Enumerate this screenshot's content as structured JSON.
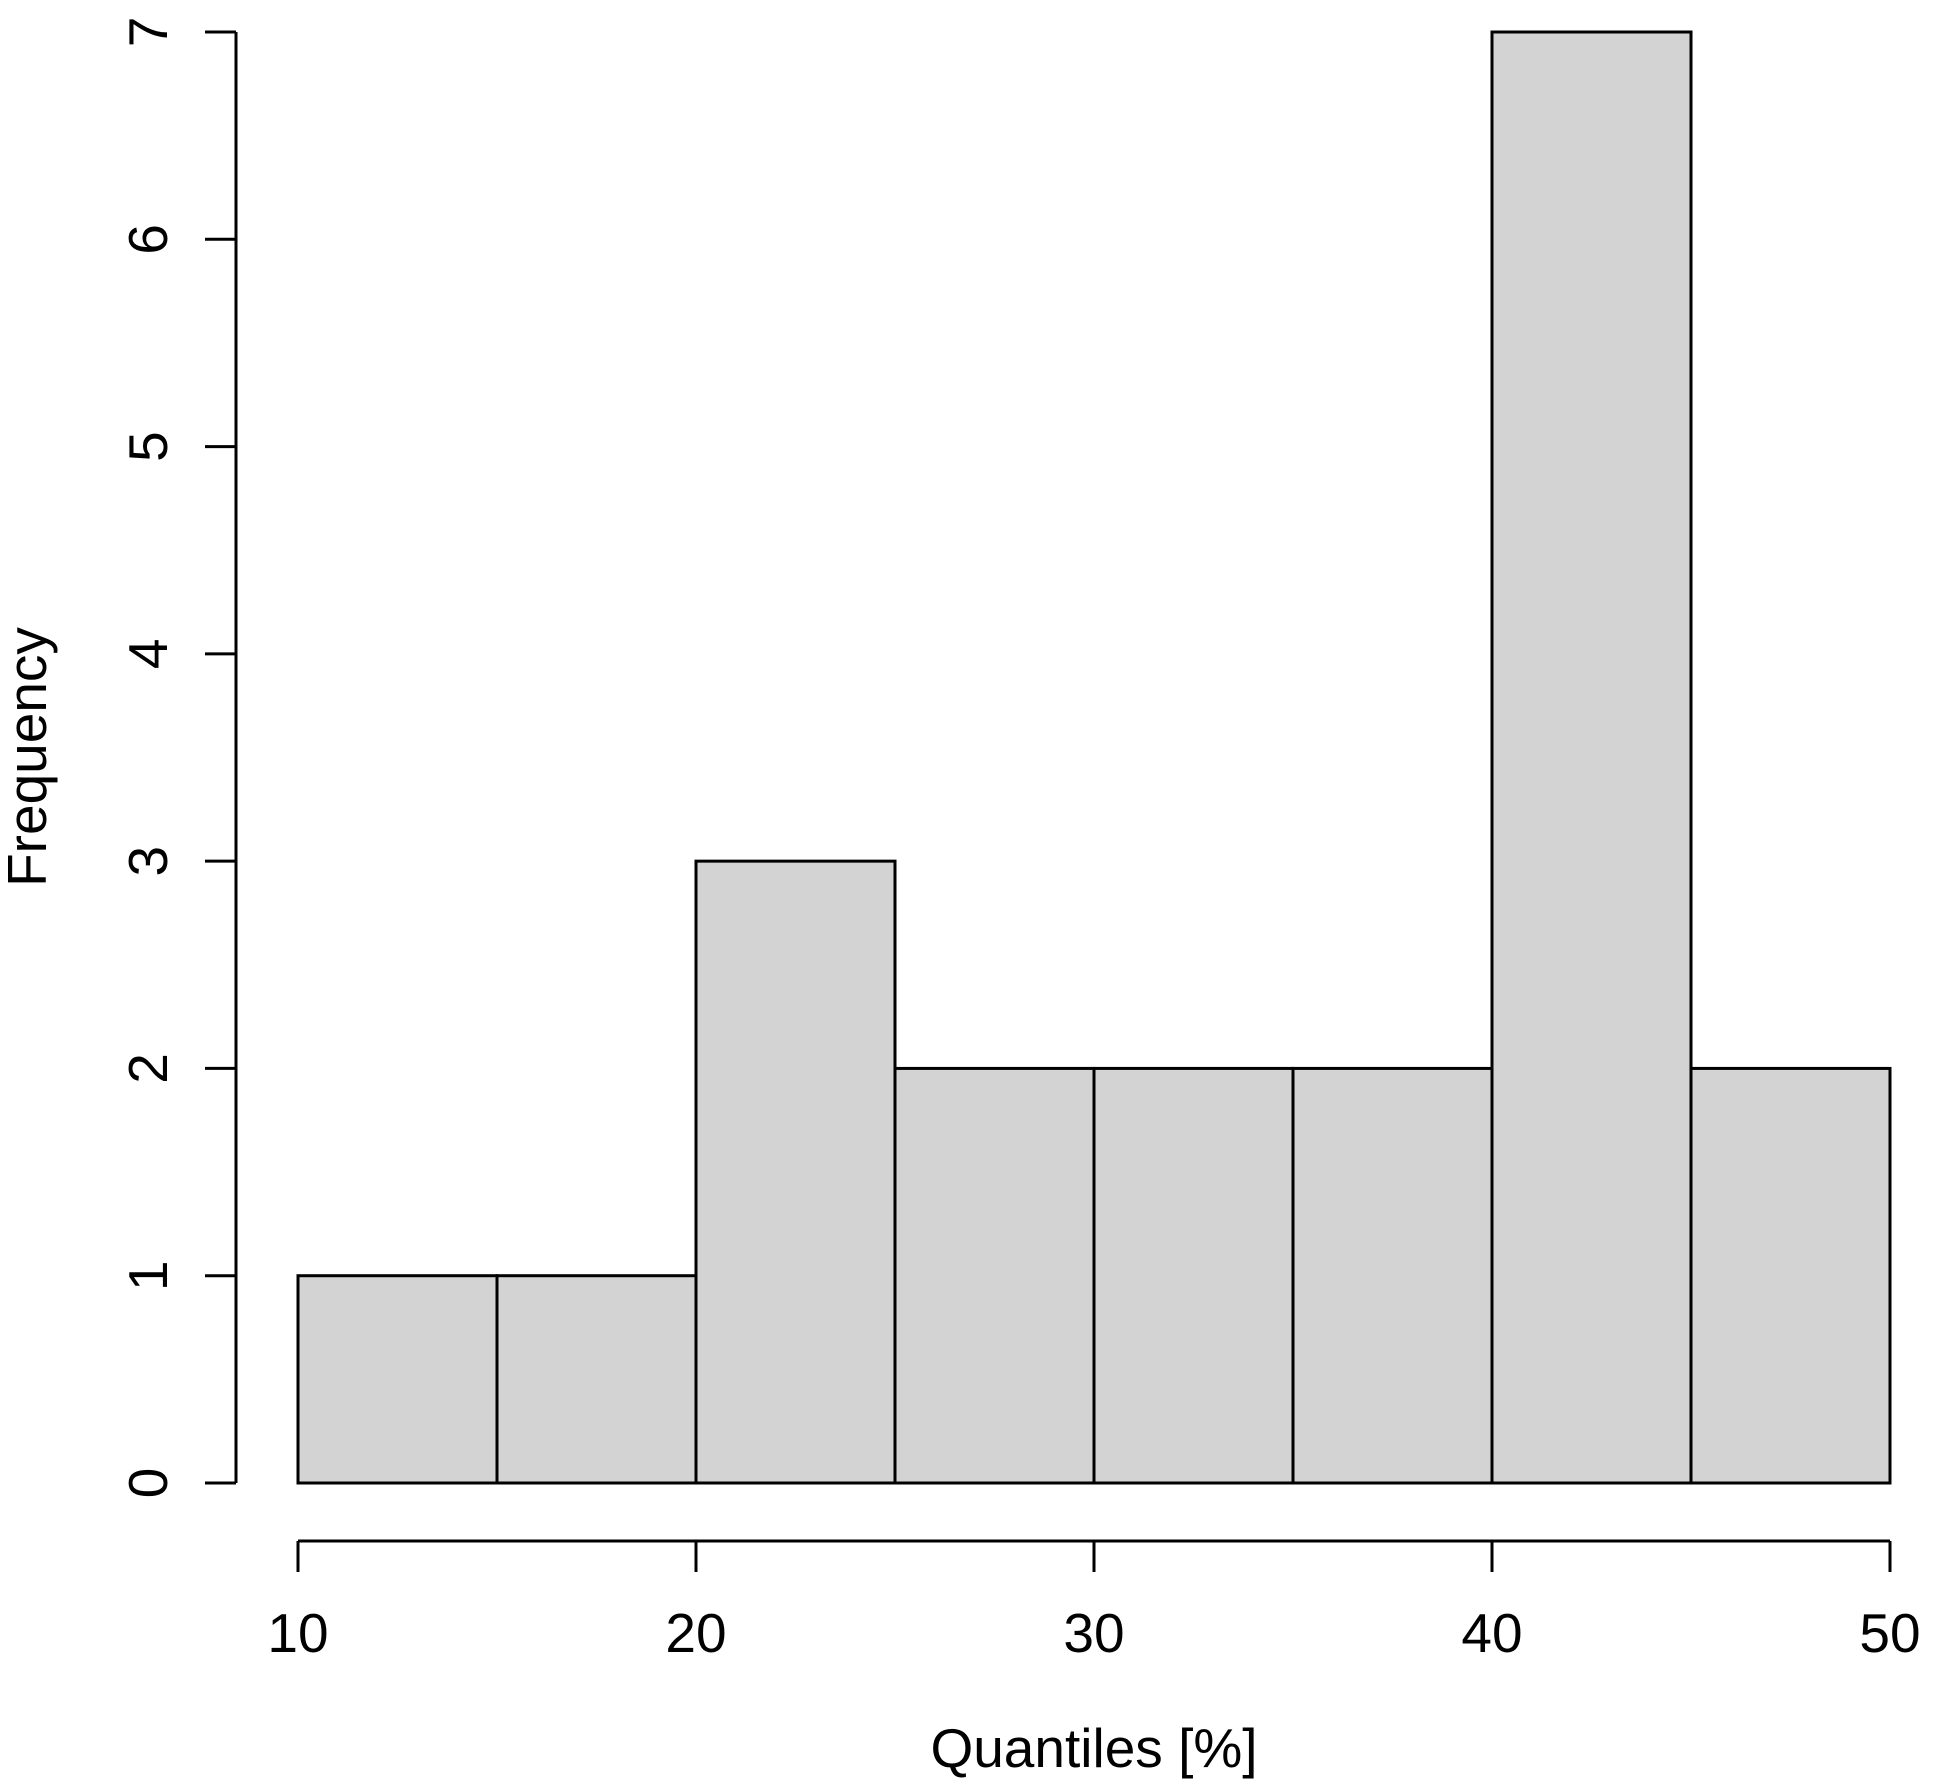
{
  "chart_data": {
    "type": "bar",
    "subtype": "histogram",
    "title": "",
    "xlabel": "Quantiles [%]",
    "ylabel": "Frequency",
    "breaks": [
      10,
      15,
      20,
      25,
      30,
      35,
      40,
      45,
      50
    ],
    "counts": [
      1,
      1,
      3,
      2,
      2,
      2,
      7,
      2
    ],
    "categories": [
      "10-15",
      "15-20",
      "20-25",
      "25-30",
      "30-35",
      "35-40",
      "40-45",
      "45-50"
    ],
    "values": [
      1,
      1,
      3,
      2,
      2,
      2,
      7,
      2
    ],
    "xlim": [
      10,
      50
    ],
    "ylim": [
      0,
      7
    ],
    "x_ticks": [
      10,
      20,
      30,
      40,
      50
    ],
    "y_ticks": [
      0,
      1,
      2,
      3,
      4,
      5,
      6,
      7
    ],
    "grid": false,
    "legend_position": "none",
    "colors": {
      "bar_fill": "#d3d3d3",
      "bar_border": "#000000",
      "axis": "#000000",
      "text": "#000000",
      "background": "#ffffff"
    }
  }
}
